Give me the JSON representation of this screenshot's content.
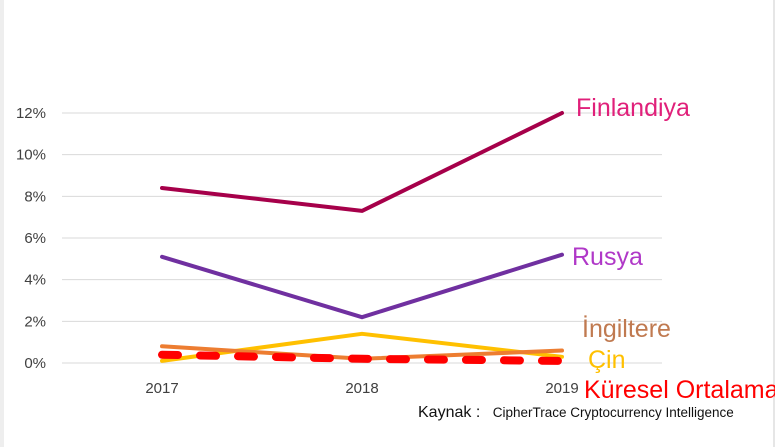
{
  "chart_data": {
    "type": "line",
    "categories": [
      "2017",
      "2018",
      "2019"
    ],
    "y_ticks": [
      "0%",
      "2%",
      "4%",
      "6%",
      "8%",
      "10%",
      "12%"
    ],
    "ylim": [
      0,
      12
    ],
    "grid": true,
    "series": [
      {
        "name": "Finlandiya",
        "values": [
          8.4,
          7.3,
          12.0
        ],
        "color": "#a6004a",
        "dashed": false
      },
      {
        "name": "Rusya",
        "values": [
          5.1,
          2.2,
          5.2
        ],
        "color": "#7030a0",
        "dashed": false
      },
      {
        "name": "İngiltere",
        "values": [
          0.8,
          0.2,
          0.6
        ],
        "color": "#ed7d31",
        "dashed": false
      },
      {
        "name": "Çin",
        "values": [
          0.1,
          1.4,
          0.3
        ],
        "color": "#ffc000",
        "dashed": false
      },
      {
        "name": "Küresel Ortalama",
        "values": [
          0.4,
          0.2,
          0.1
        ],
        "color": "#ff0000",
        "dashed": true
      }
    ],
    "series_label_colors": {
      "Finlandiya": "#e0207a",
      "Rusya": "#b038c8",
      "İngiltere": "#c07a50",
      "Çin": "#ffc000",
      "Küresel Ortalama": "#ff0000"
    }
  },
  "source": {
    "prefix": "Kaynak :",
    "text": "CipherTrace Cryptocurrency Intelligence"
  }
}
